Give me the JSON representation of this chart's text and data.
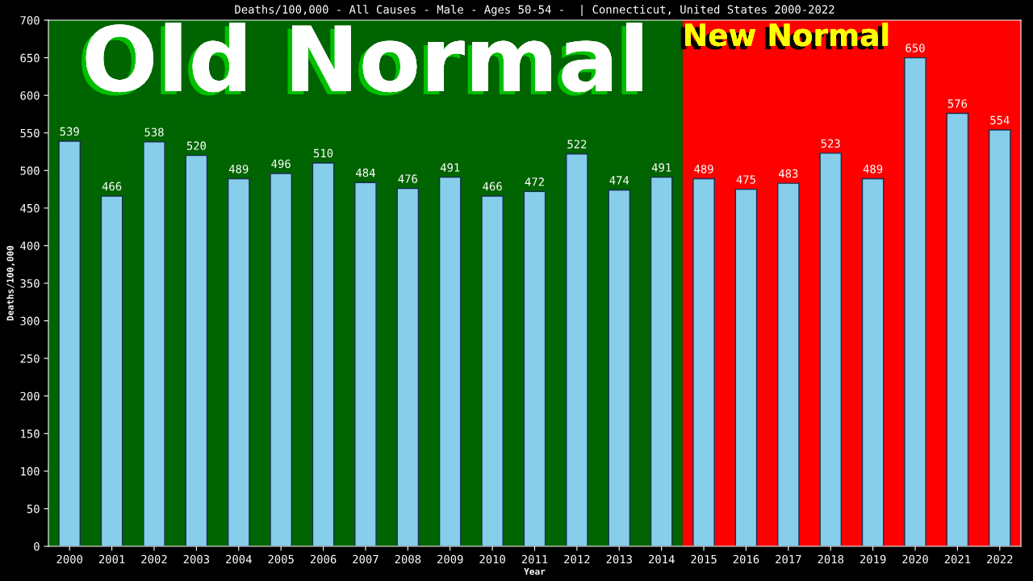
{
  "chart_data": {
    "type": "bar",
    "title": "Deaths/100,000 - All Causes - Male - Ages 50-54 -  | Connecticut, United States 2000-2022",
    "xlabel": "Year",
    "ylabel": "Deaths/100,000",
    "categories": [
      "2000",
      "2001",
      "2002",
      "2003",
      "2004",
      "2005",
      "2006",
      "2007",
      "2008",
      "2009",
      "2010",
      "2011",
      "2012",
      "2013",
      "2014",
      "2015",
      "2016",
      "2017",
      "2018",
      "2019",
      "2020",
      "2021",
      "2022"
    ],
    "values": [
      539,
      466,
      538,
      520,
      489,
      496,
      510,
      484,
      476,
      491,
      466,
      472,
      522,
      474,
      491,
      489,
      475,
      483,
      523,
      489,
      650,
      576,
      554
    ],
    "color": "#87ceeb",
    "ylim": [
      0,
      700
    ],
    "yticks": [
      0,
      50,
      100,
      150,
      200,
      250,
      300,
      350,
      400,
      450,
      500,
      550,
      600,
      650,
      700
    ],
    "data_labels": true,
    "grid": false,
    "legend": false,
    "bands": [
      {
        "axis": "x",
        "from": "2000",
        "to": "2014",
        "label": "Old Normal",
        "color": "#006400"
      },
      {
        "axis": "x",
        "from": "2015",
        "to": "2022",
        "label": "New Normal",
        "color": "#ff0000"
      }
    ]
  }
}
